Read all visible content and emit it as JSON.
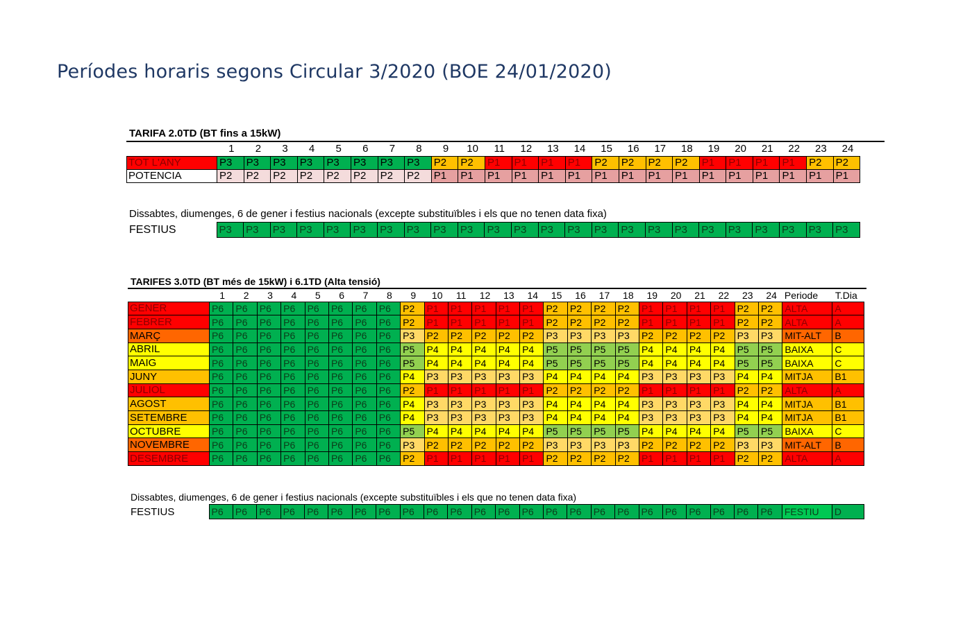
{
  "page": {
    "title": "Períodes horaris segons Circular 3/2020 (BOE 24/01/2020)"
  },
  "colors": {
    "P1": "#ff0000",
    "P2_20": "#ffc000",
    "P2_30": "#ffc000",
    "P3_20": "#00b050",
    "P3_30": "#ffd966",
    "P4": "#ffff00",
    "P5": "#92d050",
    "P6": "#00b050",
    "POT_P2": "#f4dcdc",
    "POT_P1": "#e6a0a0",
    "ALTA": "#ff0000",
    "MITALT": "#ff6600",
    "MITJA": "#ffc000",
    "BAIXA": "#ffff00",
    "FESTIU": "#00b050"
  },
  "tarifa20": {
    "title": "TARIFA 2.0TD (BT fins a 15kW)",
    "hours": [
      "1",
      "2",
      "3",
      "4",
      "5",
      "6",
      "7",
      "8",
      "9",
      "10",
      "11",
      "12",
      "13",
      "14",
      "15",
      "16",
      "17",
      "18",
      "19",
      "20",
      "21",
      "22",
      "23",
      "24"
    ],
    "rows": [
      {
        "label": "TOT L'ANY",
        "color": "#ff0000",
        "cells": [
          "P3",
          "P3",
          "P3",
          "P3",
          "P3",
          "P3",
          "P3",
          "P3",
          "P2",
          "P2",
          "P1",
          "P1",
          "P1",
          "P1",
          "P2",
          "P2",
          "P2",
          "P2",
          "P1",
          "P1",
          "P1",
          "P1",
          "P2",
          "P2"
        ]
      },
      {
        "label": "POTENCIA",
        "color": "#ffffff",
        "cells": [
          "P2",
          "P2",
          "P2",
          "P2",
          "P2",
          "P2",
          "P2",
          "P2",
          "P1",
          "P1",
          "P1",
          "P1",
          "P1",
          "P1",
          "P1",
          "P1",
          "P1",
          "P1",
          "P1",
          "P1",
          "P1",
          "P1",
          "P1",
          "P1"
        ]
      }
    ],
    "note": "Dissabtes, diumenges, 6 de gener i festius nacionals (excepte substituïbles i els que no tenen data fixa)",
    "festius": {
      "label": "FESTIUS",
      "cells": [
        "P3",
        "P3",
        "P3",
        "P3",
        "P3",
        "P3",
        "P3",
        "P3",
        "P3",
        "P3",
        "P3",
        "P3",
        "P3",
        "P3",
        "P3",
        "P3",
        "P3",
        "P3",
        "P3",
        "P3",
        "P3",
        "P3",
        "P3",
        "P3"
      ]
    }
  },
  "tarifa30": {
    "title": "TARIFES 3.0TD (BT més de 15kW) i 6.1TD (Alta tensió)",
    "hours": [
      "1",
      "2",
      "3",
      "4",
      "5",
      "6",
      "7",
      "8",
      "9",
      "10",
      "11",
      "12",
      "13",
      "14",
      "15",
      "16",
      "17",
      "18",
      "19",
      "20",
      "21",
      "22",
      "23",
      "24"
    ],
    "col_periode": "Periode",
    "col_tdia": "T.Dia",
    "rows": [
      {
        "label": "GENER",
        "color": "#ff0000",
        "cells": [
          "P6",
          "P6",
          "P6",
          "P6",
          "P6",
          "P6",
          "P6",
          "P6",
          "P2",
          "P1",
          "P1",
          "P1",
          "P1",
          "P1",
          "P2",
          "P2",
          "P2",
          "P2",
          "P1",
          "P1",
          "P1",
          "P1",
          "P2",
          "P2"
        ],
        "periode": "ALTA",
        "tdia": "A"
      },
      {
        "label": "FEBRER",
        "color": "#ff0000",
        "cells": [
          "P6",
          "P6",
          "P6",
          "P6",
          "P6",
          "P6",
          "P6",
          "P6",
          "P2",
          "P1",
          "P1",
          "P1",
          "P1",
          "P1",
          "P2",
          "P2",
          "P2",
          "P2",
          "P1",
          "P1",
          "P1",
          "P1",
          "P2",
          "P2"
        ],
        "periode": "ALTA",
        "tdia": "A"
      },
      {
        "label": "MARÇ",
        "color": "#ff6600",
        "cells": [
          "P6",
          "P6",
          "P6",
          "P6",
          "P6",
          "P6",
          "P6",
          "P6",
          "P3",
          "P2",
          "P2",
          "P2",
          "P2",
          "P2",
          "P3",
          "P3",
          "P3",
          "P3",
          "P2",
          "P2",
          "P2",
          "P2",
          "P3",
          "P3"
        ],
        "periode": "MIT-ALT",
        "tdia": "B"
      },
      {
        "label": "ABRIL",
        "color": "#ffff00",
        "cells": [
          "P6",
          "P6",
          "P6",
          "P6",
          "P6",
          "P6",
          "P6",
          "P6",
          "P5",
          "P4",
          "P4",
          "P4",
          "P4",
          "P4",
          "P5",
          "P5",
          "P5",
          "P5",
          "P4",
          "P4",
          "P4",
          "P4",
          "P5",
          "P5"
        ],
        "periode": "BAIXA",
        "tdia": "C"
      },
      {
        "label": "MAIG",
        "color": "#ffff00",
        "cells": [
          "P6",
          "P6",
          "P6",
          "P6",
          "P6",
          "P6",
          "P6",
          "P6",
          "P5",
          "P4",
          "P4",
          "P4",
          "P4",
          "P4",
          "P5",
          "P5",
          "P5",
          "P5",
          "P4",
          "P4",
          "P4",
          "P4",
          "P5",
          "P5"
        ],
        "periode": "BAIXA",
        "tdia": "C"
      },
      {
        "label": "JUNY",
        "color": "#ffc000",
        "cells": [
          "P6",
          "P6",
          "P6",
          "P6",
          "P6",
          "P6",
          "P6",
          "P6",
          "P4",
          "P3",
          "P3",
          "P3",
          "P3",
          "P3",
          "P4",
          "P4",
          "P4",
          "P4",
          "P3",
          "P3",
          "P3",
          "P3",
          "P4",
          "P4"
        ],
        "periode": "MITJA",
        "tdia": "B1"
      },
      {
        "label": "JULIOL",
        "color": "#ff0000",
        "cells": [
          "P6",
          "P6",
          "P6",
          "P6",
          "P6",
          "P6",
          "P6",
          "P6",
          "P2",
          "P1",
          "P1",
          "P1",
          "P1",
          "P1",
          "P2",
          "P2",
          "P2",
          "P2",
          "P1",
          "P1",
          "P1",
          "P1",
          "P2",
          "P2"
        ],
        "periode": "ALTA",
        "tdia": "A"
      },
      {
        "label": "AGOST",
        "color": "#ffc000",
        "cells": [
          "P6",
          "P6",
          "P6",
          "P6",
          "P6",
          "P6",
          "P6",
          "P6",
          "P4",
          "P3",
          "P3",
          "P3",
          "P3",
          "P3",
          "P4",
          "P4",
          "P4",
          "P4",
          "P3",
          "P3",
          "P3",
          "P3",
          "P4",
          "P4"
        ],
        "periode": "MITJA",
        "tdia": "B1"
      },
      {
        "label": "SETEMBRE",
        "color": "#ffc000",
        "cells": [
          "P6",
          "P6",
          "P6",
          "P6",
          "P6",
          "P6",
          "P6",
          "P6",
          "P4",
          "P3",
          "P3",
          "P3",
          "P3",
          "P3",
          "P4",
          "P4",
          "P4",
          "P4",
          "P3",
          "P3",
          "P3",
          "P3",
          "P4",
          "P4"
        ],
        "periode": "MITJA",
        "tdia": "B1"
      },
      {
        "label": "OCTUBRE",
        "color": "#ffff00",
        "cells": [
          "P6",
          "P6",
          "P6",
          "P6",
          "P6",
          "P6",
          "P6",
          "P6",
          "P5",
          "P4",
          "P4",
          "P4",
          "P4",
          "P4",
          "P5",
          "P5",
          "P5",
          "P5",
          "P4",
          "P4",
          "P4",
          "P4",
          "P5",
          "P5"
        ],
        "periode": "BAIXA",
        "tdia": "C"
      },
      {
        "label": "NOVEMBRE",
        "color": "#ff6600",
        "cells": [
          "P6",
          "P6",
          "P6",
          "P6",
          "P6",
          "P6",
          "P6",
          "P6",
          "P3",
          "P2",
          "P2",
          "P2",
          "P2",
          "P2",
          "P3",
          "P3",
          "P3",
          "P3",
          "P2",
          "P2",
          "P2",
          "P2",
          "P3",
          "P3"
        ],
        "periode": "MIT-ALT",
        "tdia": "B"
      },
      {
        "label": "DESEMBRE",
        "color": "#ff0000",
        "cells": [
          "P6",
          "P6",
          "P6",
          "P6",
          "P6",
          "P6",
          "P6",
          "P6",
          "P2",
          "P1",
          "P1",
          "P1",
          "P1",
          "P1",
          "P2",
          "P2",
          "P2",
          "P2",
          "P1",
          "P1",
          "P1",
          "P1",
          "P2",
          "P2"
        ],
        "periode": "ALTA",
        "tdia": "A"
      }
    ],
    "note": "Dissabtes, diumenges, 6 de gener i festius nacionals (excepte substituïbles i els que no tenen data fixa)",
    "festius": {
      "label": "FESTIUS",
      "cells": [
        "P6",
        "P6",
        "P6",
        "P6",
        "P6",
        "P6",
        "P6",
        "P6",
        "P6",
        "P6",
        "P6",
        "P6",
        "P6",
        "P6",
        "P6",
        "P6",
        "P6",
        "P6",
        "P6",
        "P6",
        "P6",
        "P6",
        "P6",
        "P6"
      ],
      "periode": "FESTIU",
      "tdia": "D"
    }
  }
}
